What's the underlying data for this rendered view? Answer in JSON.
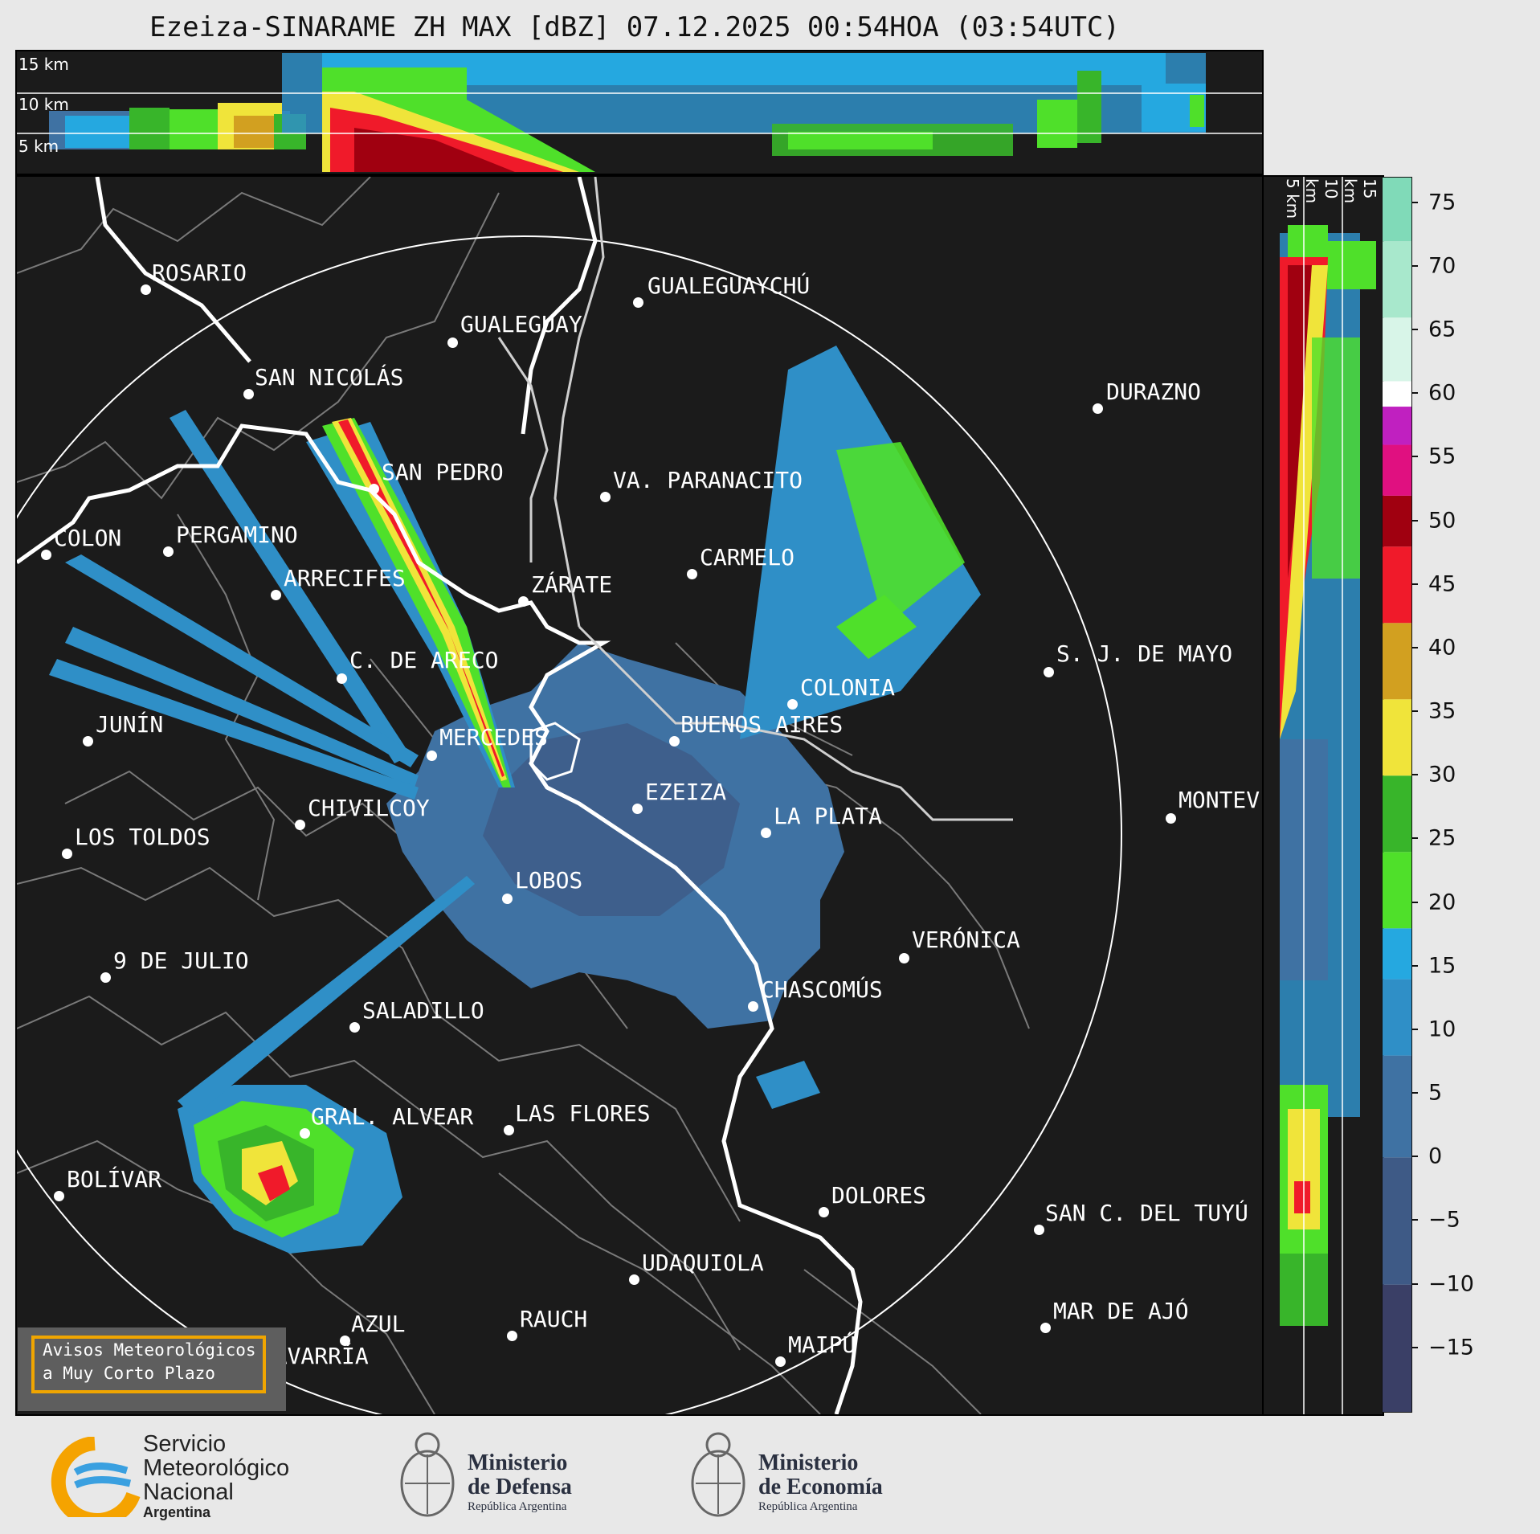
{
  "title": "Ezeiza-SINARAME ZH MAX [dBZ] 07.12.2025 00:54HOA (03:54UTC)",
  "top_panel": {
    "km_labels": [
      "15 km",
      "10 km",
      "5 km"
    ]
  },
  "side_panel": {
    "km_labels": [
      "5 km",
      "10 km",
      "15 km"
    ]
  },
  "colorbar": {
    "ticks": [
      "75",
      "70",
      "65",
      "60",
      "55",
      "50",
      "45",
      "40",
      "35",
      "30",
      "25",
      "20",
      "15",
      "10",
      "5",
      "0",
      "−5",
      "−10",
      "−15"
    ],
    "range_dbz": [
      -20,
      77
    ],
    "stops": [
      {
        "from": -20,
        "color": "#3a3f66"
      },
      {
        "from": -10,
        "color": "#3e5a86"
      },
      {
        "from": 0,
        "color": "#3f72a3"
      },
      {
        "from": 8,
        "color": "#2f8fc7"
      },
      {
        "from": 14,
        "color": "#25a8e0"
      },
      {
        "from": 18,
        "color": "#4fe02a"
      },
      {
        "from": 24,
        "color": "#38b52a"
      },
      {
        "from": 30,
        "color": "#f0e43a"
      },
      {
        "from": 36,
        "color": "#d2a020"
      },
      {
        "from": 42,
        "color": "#f01a2a"
      },
      {
        "from": 48,
        "color": "#a00010"
      },
      {
        "from": 52,
        "color": "#e01080"
      },
      {
        "from": 56,
        "color": "#c020c0"
      },
      {
        "from": 59,
        "color": "#ffffff"
      },
      {
        "from": 61,
        "color": "#d8f5e8"
      },
      {
        "from": 66,
        "color": "#a8e8cc"
      },
      {
        "from": 72,
        "color": "#80dab8"
      }
    ]
  },
  "cities": [
    {
      "name": "ROSARIO"
    },
    {
      "name": "GUALEGUAYCHÚ"
    },
    {
      "name": "GUALEGUAY"
    },
    {
      "name": "SAN NICOLÁS"
    },
    {
      "name": "DURAZNO"
    },
    {
      "name": "SAN PEDRO"
    },
    {
      "name": "VA. PARANACITO"
    },
    {
      "name": "COLON"
    },
    {
      "name": "PERGAMINO"
    },
    {
      "name": "CARMELO"
    },
    {
      "name": "ARRECIFES"
    },
    {
      "name": "ZÁRATE"
    },
    {
      "name": "S. J. DE MAYO"
    },
    {
      "name": "C. DE ARECO"
    },
    {
      "name": "COLONIA"
    },
    {
      "name": "JUNÍN"
    },
    {
      "name": "BUENOS AIRES"
    },
    {
      "name": "MERCEDES"
    },
    {
      "name": "EZEIZA"
    },
    {
      "name": "MONTEV"
    },
    {
      "name": "CHIVILCOY"
    },
    {
      "name": "LA PLATA"
    },
    {
      "name": "LOS TOLDOS"
    },
    {
      "name": "LOBOS"
    },
    {
      "name": "VERÓNICA"
    },
    {
      "name": "9 DE JULIO"
    },
    {
      "name": "CHASCOMÚS"
    },
    {
      "name": "SALADILLO"
    },
    {
      "name": "GRAL. ALVEAR"
    },
    {
      "name": "LAS FLORES"
    },
    {
      "name": "BOLÍVAR"
    },
    {
      "name": "DOLORES"
    },
    {
      "name": "SAN C. DEL TUYÚ"
    },
    {
      "name": "UDAQUIOLA"
    },
    {
      "name": "RAUCH"
    },
    {
      "name": "MAR DE AJÓ"
    },
    {
      "name": "AZUL"
    },
    {
      "name": "MAIPÚ"
    },
    {
      "name": "OLAVARRÍA"
    }
  ],
  "aviso": {
    "line1": "Avisos Meteorológicos",
    "line2": "a Muy Corto Plazo"
  },
  "logos": {
    "smn": {
      "line1": "Servicio",
      "line2": "Meteorológico",
      "line3": "Nacional",
      "line4": "Argentina"
    },
    "defensa": {
      "line1": "Ministerio",
      "line2": "de Defensa",
      "line3": "República Argentina"
    },
    "economia": {
      "line1": "Ministerio",
      "line2": "de Economía",
      "line3": "República Argentina"
    }
  }
}
